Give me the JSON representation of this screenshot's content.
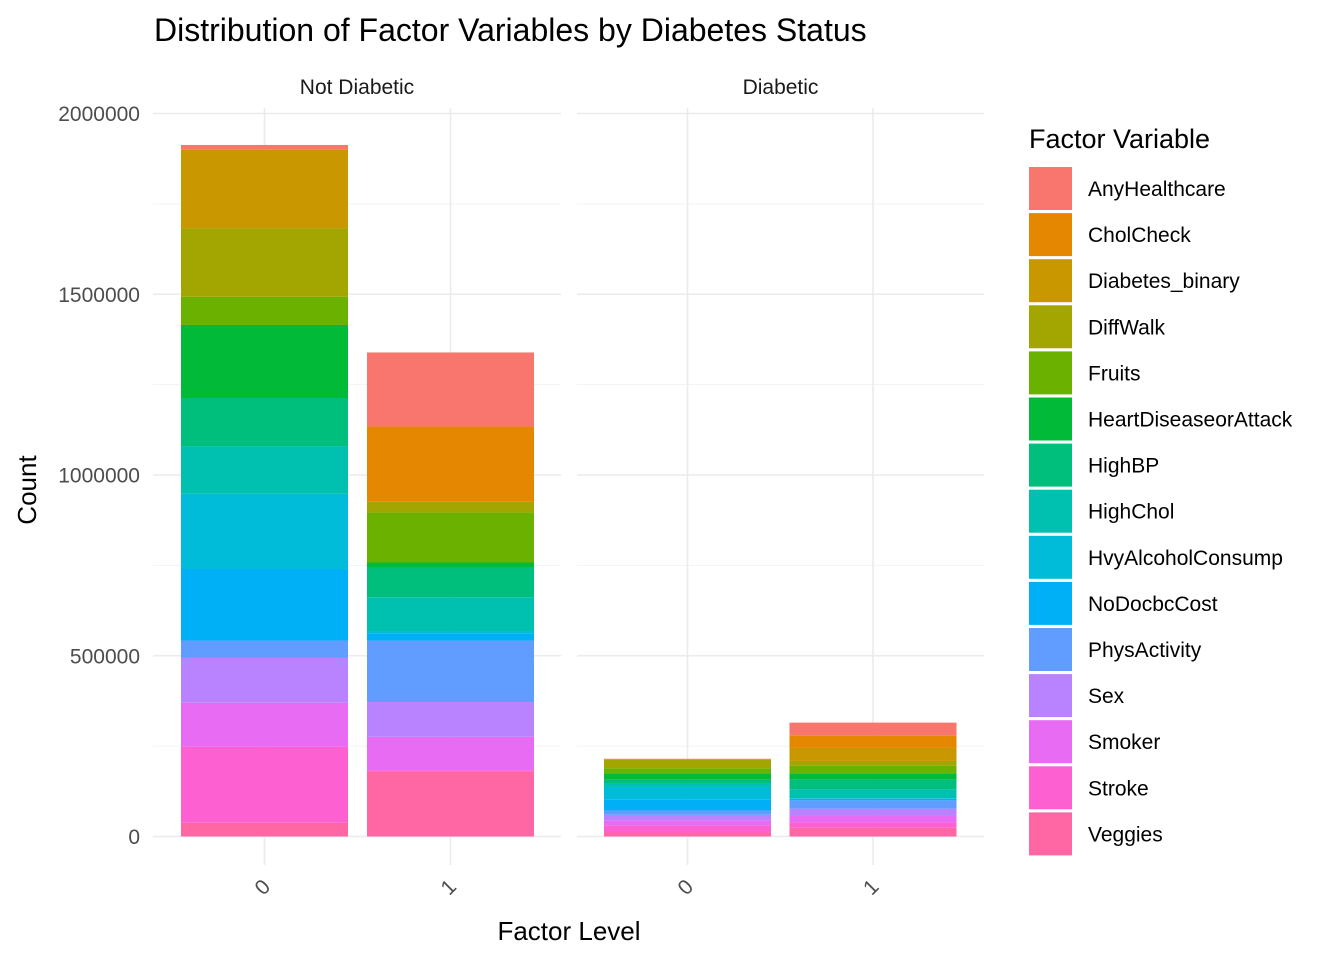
{
  "chart_data": {
    "type": "bar",
    "stacked": true,
    "title": "Distribution of Factor Variables by Diabetes Status",
    "xlabel": "Factor Level",
    "ylabel": "Count",
    "ylim": [
      0,
      2000000
    ],
    "yticks": [
      0,
      500000,
      1000000,
      1500000,
      2000000
    ],
    "ytick_labels": [
      "0",
      "500000",
      "1000000",
      "1500000",
      "2000000"
    ],
    "categories": [
      "0",
      "1"
    ],
    "legend_title": "Factor Variable",
    "legend_position": "right",
    "grid": true,
    "panels": [
      {
        "label": "Not Diabetic",
        "stacks": {
          "0": [
            {
              "series": "AnyHealthcare",
              "value": 12000
            },
            {
              "series": "CholCheck",
              "value": 0
            },
            {
              "series": "Diabetes_binary",
              "value": 218000
            },
            {
              "series": "DiffWalk",
              "value": 190000
            },
            {
              "series": "Fruits",
              "value": 78000
            },
            {
              "series": "HeartDiseaseorAttack",
              "value": 202000
            },
            {
              "series": "HighBP",
              "value": 133000
            },
            {
              "series": "HighChol",
              "value": 132000
            },
            {
              "series": "HvyAlcoholConsump",
              "value": 208000
            },
            {
              "series": "NoDocbcCost",
              "value": 198000
            },
            {
              "series": "PhysActivity",
              "value": 48000
            },
            {
              "series": "Sex",
              "value": 124000
            },
            {
              "series": "Smoker",
              "value": 122000
            },
            {
              "series": "Stroke",
              "value": 210000
            },
            {
              "series": "Veggies",
              "value": 38000
            }
          ],
          "1": [
            {
              "series": "AnyHealthcare",
              "value": 205000
            },
            {
              "series": "CholCheck",
              "value": 208000
            },
            {
              "series": "Diabetes_binary",
              "value": 0
            },
            {
              "series": "DiffWalk",
              "value": 30000
            },
            {
              "series": "Fruits",
              "value": 138000
            },
            {
              "series": "HeartDiseaseorAttack",
              "value": 14000
            },
            {
              "series": "HighBP",
              "value": 82000
            },
            {
              "series": "HighChol",
              "value": 95000
            },
            {
              "series": "HvyAlcoholConsump",
              "value": 5000
            },
            {
              "series": "NoDocbcCost",
              "value": 20000
            },
            {
              "series": "PhysActivity",
              "value": 170000
            },
            {
              "series": "Sex",
              "value": 96000
            },
            {
              "series": "Smoker",
              "value": 93000
            },
            {
              "series": "Stroke",
              "value": 3000
            },
            {
              "series": "Veggies",
              "value": 180000
            }
          ]
        }
      },
      {
        "label": "Diabetic",
        "stacks": {
          "0": [
            {
              "series": "AnyHealthcare",
              "value": 2000
            },
            {
              "series": "CholCheck",
              "value": 1000
            },
            {
              "series": "Diabetes_binary",
              "value": 0
            },
            {
              "series": "DiffWalk",
              "value": 23000
            },
            {
              "series": "Fruits",
              "value": 14000
            },
            {
              "series": "HeartDiseaseorAttack",
              "value": 18000
            },
            {
              "series": "HighBP",
              "value": 9000
            },
            {
              "series": "HighChol",
              "value": 11000
            },
            {
              "series": "HvyAlcoholConsump",
              "value": 34000
            },
            {
              "series": "NoDocbcCost",
              "value": 31000
            },
            {
              "series": "PhysActivity",
              "value": 12000
            },
            {
              "series": "Sex",
              "value": 15000
            },
            {
              "series": "Smoker",
              "value": 15000
            },
            {
              "series": "Stroke",
              "value": 19000
            },
            {
              "series": "Veggies",
              "value": 11000
            }
          ],
          "1": [
            {
              "series": "AnyHealthcare",
              "value": 35000
            },
            {
              "series": "CholCheck",
              "value": 35000
            },
            {
              "series": "Diabetes_binary",
              "value": 36000
            },
            {
              "series": "DiffWalk",
              "value": 13000
            },
            {
              "series": "Fruits",
              "value": 21000
            },
            {
              "series": "HeartDiseaseorAttack",
              "value": 17000
            },
            {
              "series": "HighBP",
              "value": 27000
            },
            {
              "series": "HighChol",
              "value": 25000
            },
            {
              "series": "HvyAlcoholConsump",
              "value": 2000
            },
            {
              "series": "NoDocbcCost",
              "value": 4000
            },
            {
              "series": "PhysActivity",
              "value": 23000
            },
            {
              "series": "Sex",
              "value": 19000
            },
            {
              "series": "Smoker",
              "value": 19000
            },
            {
              "series": "Stroke",
              "value": 15000
            },
            {
              "series": "Veggies",
              "value": 24000
            }
          ]
        }
      }
    ],
    "series_colors": {
      "AnyHealthcare": "#F8766D",
      "CholCheck": "#E58700",
      "Diabetes_binary": "#C99800",
      "DiffWalk": "#A3A500",
      "Fruits": "#6BB100",
      "HeartDiseaseorAttack": "#00BA38",
      "HighBP": "#00BF7D",
      "HighChol": "#00C0AF",
      "HvyAlcoholConsump": "#00BCD8",
      "NoDocbcCost": "#00B0F6",
      "PhysActivity": "#619CFF",
      "Sex": "#B983FF",
      "Smoker": "#E76BF3",
      "Stroke": "#FD61D1",
      "Veggies": "#FF67A4"
    },
    "series_order": [
      "AnyHealthcare",
      "CholCheck",
      "Diabetes_binary",
      "DiffWalk",
      "Fruits",
      "HeartDiseaseorAttack",
      "HighBP",
      "HighChol",
      "HvyAlcoholConsump",
      "NoDocbcCost",
      "PhysActivity",
      "Sex",
      "Smoker",
      "Stroke",
      "Veggies"
    ]
  }
}
